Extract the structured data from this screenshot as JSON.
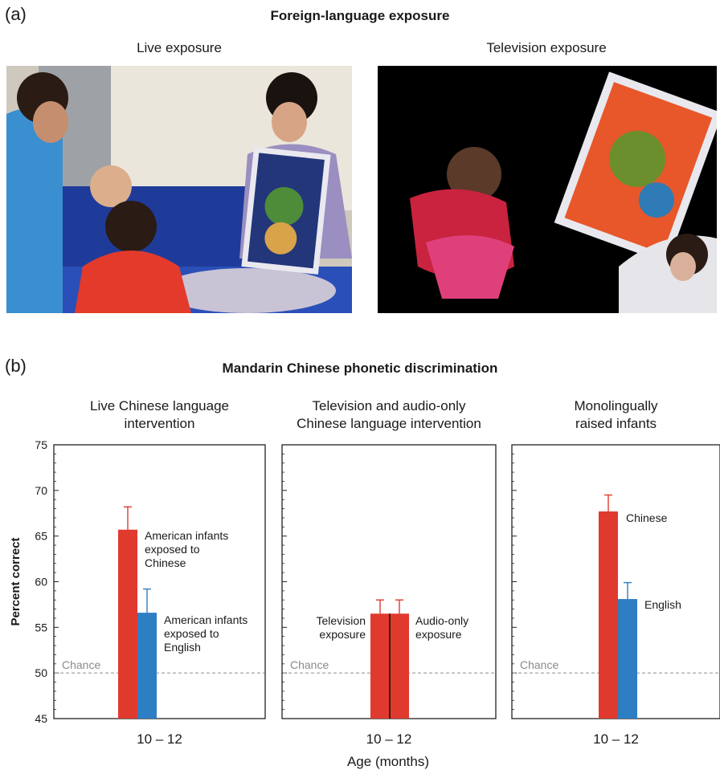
{
  "panel_a": {
    "letter": "(a)",
    "title": "Foreign-language exposure",
    "photo_left_title": "Live exposure",
    "photo_right_title": "Television exposure"
  },
  "panel_b": {
    "letter": "(b)",
    "title": "Mandarin Chinese phonetic discrimination"
  },
  "colors": {
    "chinese": "#e03a2f",
    "english": "#2e7ec3",
    "error": "#e03a2f",
    "error_blue": "#2e7ec3",
    "chance": "#9a9a9a"
  },
  "chart_data": [
    {
      "type": "bar",
      "title": "Live Chinese language intervention",
      "categories": [
        "10 – 12"
      ],
      "series": [
        {
          "name": "American infants exposed to Chinese",
          "values": [
            65.7
          ],
          "error": [
            2.5
          ],
          "color": "#e03a2f"
        },
        {
          "name": "American infants exposed to English",
          "values": [
            56.6
          ],
          "error": [
            2.6
          ],
          "color": "#2e7ec3"
        }
      ],
      "ylabel": "Percent correct",
      "ylim": [
        45,
        75
      ],
      "yticks": [
        45,
        50,
        55,
        60,
        65,
        70,
        75
      ],
      "chance": {
        "label": "Chance",
        "value": 50
      },
      "xlabel": "Age (months)"
    },
    {
      "type": "bar",
      "title": "Television and audio-only Chinese language intervention",
      "categories": [
        "10 – 12"
      ],
      "series": [
        {
          "name": "Television exposure",
          "values": [
            56.5
          ],
          "error": [
            1.5
          ],
          "color": "#e03a2f"
        },
        {
          "name": "Audio-only exposure",
          "values": [
            56.5
          ],
          "error": [
            1.5
          ],
          "color": "#e03a2f"
        }
      ],
      "ylim": [
        45,
        75
      ],
      "chance": {
        "label": "Chance",
        "value": 50
      },
      "xlabel": "Age (months)"
    },
    {
      "type": "bar",
      "title": "Monolingually raised infants",
      "categories": [
        "10 – 12"
      ],
      "series": [
        {
          "name": "Chinese",
          "values": [
            67.7
          ],
          "error": [
            1.8
          ],
          "color": "#e03a2f"
        },
        {
          "name": "English",
          "values": [
            58.1
          ],
          "error": [
            1.8
          ],
          "color": "#2e7ec3"
        }
      ],
      "ylim": [
        45,
        75
      ],
      "chance": {
        "label": "Chance",
        "value": 50
      },
      "xlabel": "Age (months)"
    }
  ]
}
